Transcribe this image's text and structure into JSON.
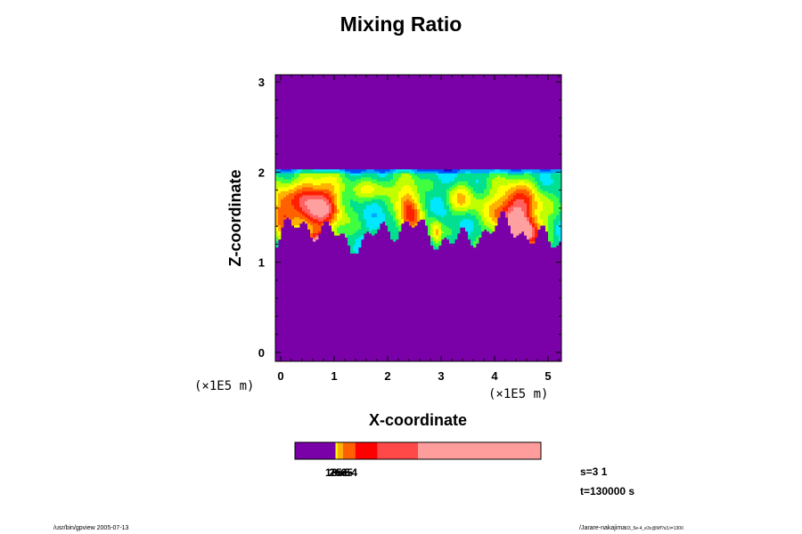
{
  "chart_data": {
    "type": "heatmap",
    "title": "Mixing Ratio",
    "xlabel": "X-coordinate",
    "ylabel": "Z-coordinate",
    "x_unit": "(×1E5 m)",
    "y_unit": "(×1E5 m)",
    "xlim": [
      -0.1,
      5.25
    ],
    "ylim": [
      -0.1,
      3.08
    ],
    "x_ticks": [
      "0",
      "1",
      "2",
      "3",
      "4",
      "5"
    ],
    "y_ticks": [
      "0",
      "1",
      "2",
      "3"
    ],
    "cloud_layer": {
      "z_bottom": 1.1,
      "z_top": 2.03
    },
    "colormap": [
      "#7a00a8",
      "#2000c0",
      "#0050ff",
      "#00a8ff",
      "#00e8ff",
      "#00e090",
      "#40ff40",
      "#c0ff00",
      "#ffff00",
      "#ffb000",
      "#ff6000",
      "#ff2000",
      "#ff6060",
      "#ffa0a0"
    ],
    "colorbar": {
      "labels": [
        "1e-6",
        "2e-5",
        "3e-5",
        "5e-4"
      ],
      "segments": [
        {
          "color": "#7a00a8",
          "frac": 0.165
        },
        {
          "color": "#ffff00",
          "frac": 0.008
        },
        {
          "color": "#ffb000",
          "frac": 0.022
        },
        {
          "color": "#ff6000",
          "frac": 0.05
        },
        {
          "color": "#ff0000",
          "frac": 0.09
        },
        {
          "color": "#ff4848",
          "frac": 0.165
        },
        {
          "color": "#ff9c9c",
          "frac": 0.5
        }
      ]
    },
    "grid": false
  },
  "status": {
    "s": "s=3 1",
    "t": "t=130000 s"
  },
  "footer": {
    "left": "/usr/bin/gpview 2005-07-13",
    "right_main": "/Jarare-nakajima",
    "right_small": "03_5e-4_e3c@Mf?s3,t=1300"
  }
}
